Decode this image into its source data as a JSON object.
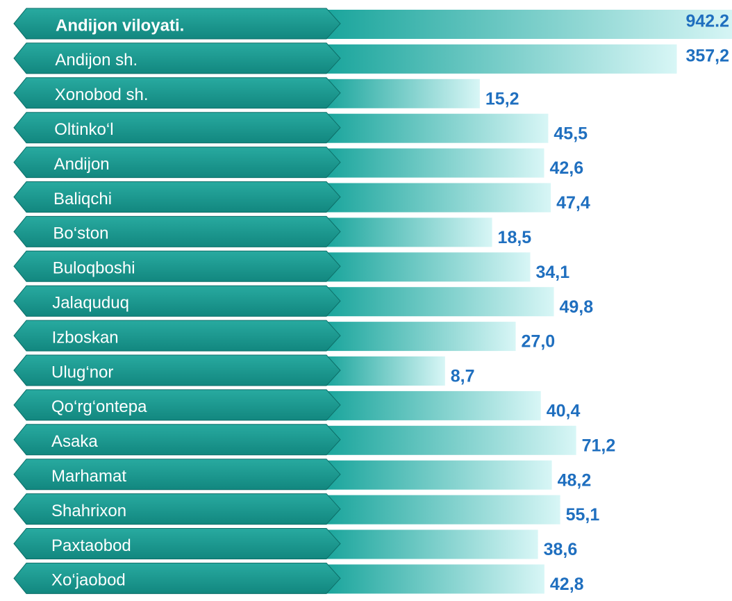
{
  "chart_data": {
    "type": "hbar",
    "log_scale": true,
    "xlim": [
      1.3,
      1000
    ],
    "categories": [
      "Andijon viloyati.",
      "Andijon  sh.",
      "Xonobod sh.",
      "Oltinko‘l",
      "Andijon",
      "Baliqchi",
      "Bo‘ston",
      "Buloqboshi",
      "Jalaquduq",
      "Izboskan",
      "Ulug‘nor",
      "Qo‘rg‘ontepa",
      "Asaka",
      "Marhamat",
      "Shahrixon",
      "Paxtaobod",
      "Xo‘jaobod"
    ],
    "values": [
      942.2,
      357.2,
      15.2,
      45.5,
      42.6,
      47.4,
      18.5,
      34.1,
      49.8,
      27.0,
      8.7,
      40.4,
      71.2,
      48.2,
      55.1,
      38.6,
      42.8
    ],
    "value_labels": [
      "942.2",
      "357,2",
      "15,2",
      "45,5",
      "42,6",
      "47,4",
      "18,5",
      "34,1",
      "49,8",
      "27,0",
      "8,7",
      "40,4",
      "71,2",
      "48,2",
      "55,1",
      "38,6",
      "42,8"
    ],
    "color": "#1aa59c"
  }
}
